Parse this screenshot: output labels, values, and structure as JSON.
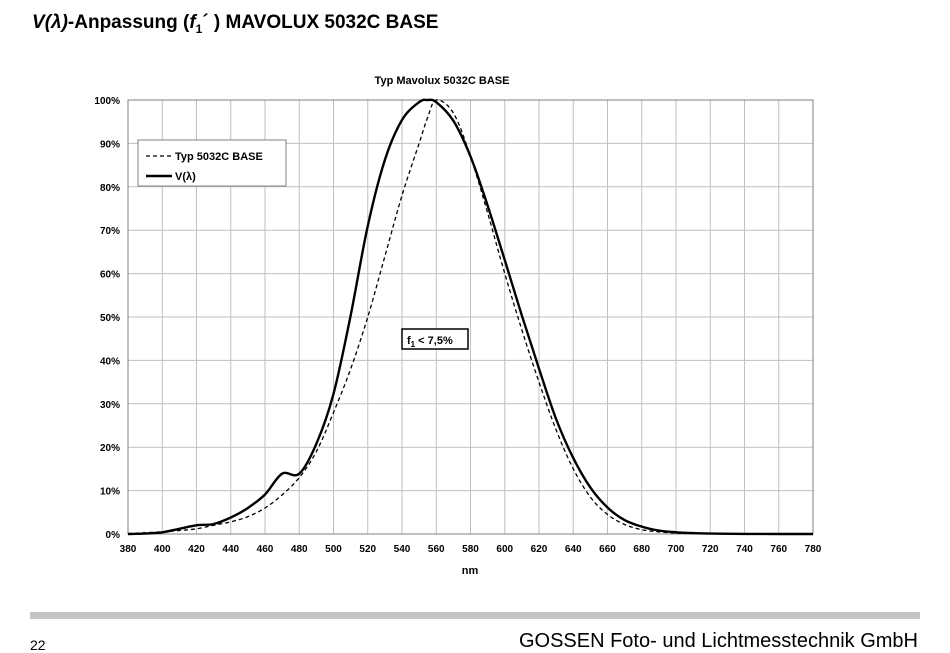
{
  "page": {
    "heading": {
      "v": "V",
      "lambda": "(λ)",
      "rest": "-Anpassung (",
      "f": "f",
      "sub": "1",
      "tail": "´ ) MAVOLUX 5032C BASE"
    },
    "page_number": "22",
    "company": "GOSSEN Foto- und Lichtmesstechnik GmbH"
  },
  "chart_data": {
    "type": "line",
    "title": "Typ Mavolux 5032C BASE",
    "xlabel": "nm",
    "ylabel": "",
    "xlim": [
      380,
      780
    ],
    "ylim": [
      0,
      100
    ],
    "x_ticks": [
      380,
      400,
      420,
      440,
      460,
      480,
      500,
      520,
      540,
      560,
      580,
      600,
      620,
      640,
      660,
      680,
      700,
      720,
      740,
      760,
      780
    ],
    "y_ticks": [
      0,
      10,
      20,
      30,
      40,
      50,
      60,
      70,
      80,
      90,
      100
    ],
    "y_tick_suffix": "%",
    "grid": true,
    "legend_position": "top-left",
    "annotation": {
      "prefix": "f",
      "sub": "1",
      "text": " < 7,5%",
      "x": 580,
      "y": 45
    },
    "x": [
      380,
      390,
      400,
      410,
      420,
      430,
      440,
      450,
      460,
      470,
      480,
      490,
      500,
      510,
      520,
      530,
      540,
      550,
      555,
      560,
      570,
      580,
      590,
      600,
      610,
      620,
      630,
      640,
      650,
      660,
      670,
      680,
      690,
      700,
      710,
      720,
      740,
      760,
      780
    ],
    "series": [
      {
        "name": "Typ 5032C BASE",
        "style": "dashed",
        "values": [
          0.1,
          0.3,
          0.5,
          0.8,
          1.2,
          2,
          2.8,
          4,
          6,
          9,
          13,
          19,
          28,
          38,
          50,
          64,
          78,
          90,
          96,
          100,
          97,
          87,
          74,
          60,
          47,
          35,
          24,
          15,
          8.5,
          4.5,
          2.2,
          1,
          0.5,
          0.2,
          0.1,
          0.05,
          0,
          0,
          0
        ]
      },
      {
        "name": "V(λ)",
        "style": "solid",
        "values": [
          0,
          0.1,
          0.4,
          1.2,
          2,
          2.3,
          3.8,
          6,
          9.1,
          13.9,
          13.9,
          20.8,
          32.3,
          50.3,
          71,
          86.2,
          95.4,
          99.5,
          100,
          99.5,
          95.2,
          87,
          75.7,
          63.1,
          50.3,
          38.1,
          26.5,
          17.5,
          10.7,
          6.1,
          3.2,
          1.7,
          0.8,
          0.4,
          0.2,
          0.1,
          0.03,
          0.01,
          0
        ]
      }
    ],
    "colors": {
      "line": "#000000",
      "grid": "#bfbfbf",
      "frame": "#808080"
    }
  }
}
